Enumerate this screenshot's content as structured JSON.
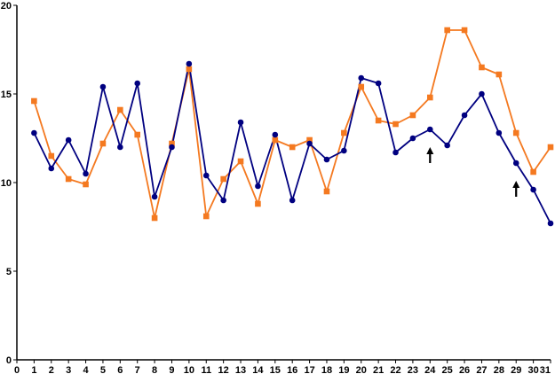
{
  "chart_data": {
    "type": "line",
    "title": "",
    "xlabel": "",
    "ylabel": "",
    "xlim": [
      0,
      31
    ],
    "ylim": [
      0,
      20
    ],
    "x_ticks": [
      "0",
      "1",
      "2",
      "3",
      "4",
      "5",
      "6",
      "7",
      "8",
      "9",
      "10",
      "11",
      "12",
      "13",
      "14",
      "15",
      "16",
      "17",
      "18",
      "19",
      "20",
      "21",
      "22",
      "23",
      "24",
      "25",
      "26",
      "27",
      "28",
      "29",
      "30",
      "31"
    ],
    "y_ticks": [
      "0",
      "5",
      "10",
      "15",
      "20"
    ],
    "grid": false,
    "legend": "none",
    "x": [
      1,
      2,
      3,
      4,
      5,
      6,
      7,
      8,
      9,
      10,
      11,
      12,
      13,
      14,
      15,
      16,
      17,
      18,
      19,
      20,
      21,
      22,
      23,
      24,
      25,
      26,
      27,
      28,
      29,
      30,
      31
    ],
    "series": [
      {
        "color": "#000080",
        "marker": "circle",
        "values": [
          12.8,
          10.8,
          12.4,
          10.5,
          15.4,
          12.0,
          15.6,
          9.2,
          12.0,
          16.7,
          10.4,
          9.0,
          13.4,
          9.8,
          12.7,
          9.0,
          12.2,
          11.3,
          11.8,
          15.9,
          15.6,
          11.7,
          12.5,
          13.0,
          12.1,
          13.8,
          15.0,
          12.8,
          11.1,
          9.6,
          7.7
        ]
      },
      {
        "color": "#F47920",
        "marker": "square",
        "values": [
          14.6,
          11.5,
          10.2,
          9.9,
          12.2,
          14.1,
          12.7,
          8.0,
          12.2,
          16.4,
          8.1,
          10.2,
          11.2,
          8.8,
          12.4,
          12.0,
          12.4,
          9.5,
          12.8,
          15.4,
          13.5,
          13.3,
          13.8,
          14.8,
          18.6,
          18.6,
          16.5,
          16.1,
          12.8,
          10.6,
          12.0
        ]
      }
    ],
    "annotations": [
      {
        "type": "arrow-up",
        "x": 24,
        "y": 12.0
      },
      {
        "type": "arrow-up",
        "x": 29,
        "y": 10.1
      }
    ]
  }
}
